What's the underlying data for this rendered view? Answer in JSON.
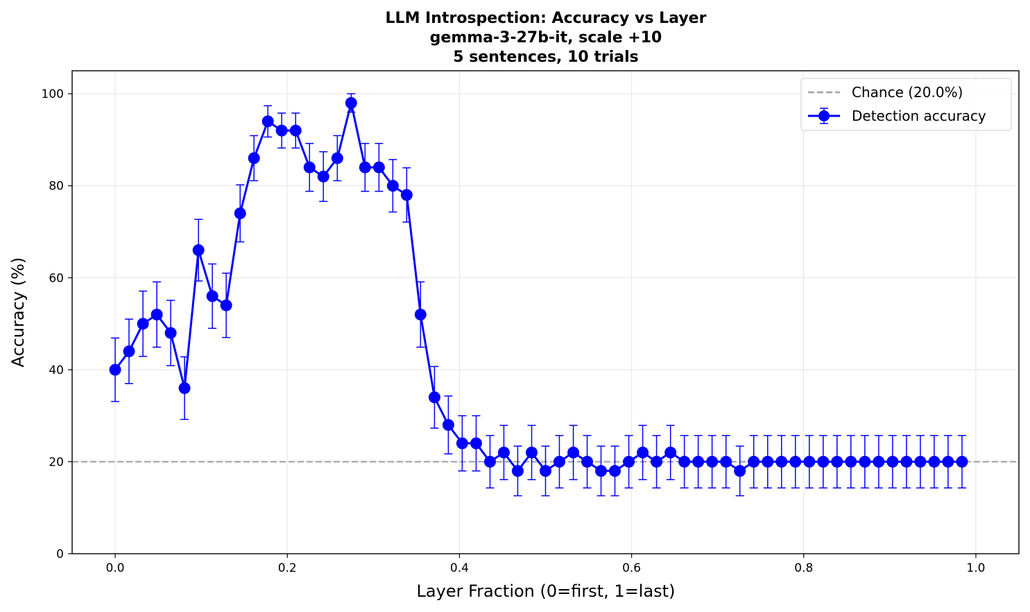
{
  "chart_data": {
    "type": "line",
    "title_lines": [
      "LLM Introspection: Accuracy vs Layer",
      "gemma-3-27b-it, scale +10",
      "5 sentences, 10 trials"
    ],
    "xlabel": "Layer Fraction (0=first, 1=last)",
    "ylabel": "Accuracy (%)",
    "xlim": [
      -0.05,
      1.05
    ],
    "ylim": [
      0,
      105
    ],
    "xticks": [
      0.0,
      0.2,
      0.4,
      0.6,
      0.8,
      1.0
    ],
    "xtick_labels": [
      "0.0",
      "0.2",
      "0.4",
      "0.6",
      "0.8",
      "1.0"
    ],
    "yticks": [
      0,
      20,
      40,
      60,
      80,
      100
    ],
    "ytick_labels": [
      "0",
      "20",
      "40",
      "60",
      "80",
      "100"
    ],
    "grid": true,
    "legend_position": "top-right",
    "series": [
      {
        "name": "Detection accuracy",
        "color": "#0000ff",
        "marker": "circle",
        "x": [
          0.0,
          0.0161,
          0.0323,
          0.0484,
          0.0645,
          0.0806,
          0.0968,
          0.1129,
          0.129,
          0.1452,
          0.1613,
          0.1774,
          0.1935,
          0.2097,
          0.2258,
          0.2419,
          0.2581,
          0.2742,
          0.2903,
          0.3065,
          0.3226,
          0.3387,
          0.3548,
          0.371,
          0.3871,
          0.4032,
          0.4194,
          0.4355,
          0.4516,
          0.4677,
          0.4839,
          0.5,
          0.5161,
          0.5323,
          0.5484,
          0.5645,
          0.5806,
          0.5968,
          0.6129,
          0.629,
          0.6452,
          0.6613,
          0.6774,
          0.6935,
          0.7097,
          0.7258,
          0.7419,
          0.7581,
          0.7742,
          0.7903,
          0.8065,
          0.8226,
          0.8387,
          0.8548,
          0.871,
          0.8871,
          0.9032,
          0.9194,
          0.9355,
          0.9516,
          0.9677,
          0.9839
        ],
        "y": [
          40,
          44,
          50,
          52,
          48,
          36,
          66,
          56,
          54,
          74,
          86,
          94,
          92,
          92,
          84,
          82,
          86,
          98,
          84,
          84,
          80,
          78,
          52,
          34,
          28,
          24,
          24,
          20,
          22,
          18,
          22,
          18,
          20,
          22,
          20,
          18,
          18,
          20,
          22,
          20,
          22,
          20,
          20,
          20,
          20,
          18,
          20,
          20,
          20,
          20,
          20,
          20,
          20,
          20,
          20,
          20,
          20,
          20,
          20,
          20,
          20,
          20
        ],
        "error": [
          6.9,
          7.0,
          7.1,
          7.1,
          7.1,
          6.8,
          6.7,
          7.0,
          7.0,
          6.2,
          4.9,
          3.4,
          3.8,
          3.8,
          5.2,
          5.4,
          4.9,
          2.0,
          5.2,
          5.2,
          5.7,
          5.9,
          7.1,
          6.7,
          6.3,
          6.0,
          6.0,
          5.7,
          5.9,
          5.4,
          5.9,
          5.4,
          5.7,
          5.9,
          5.7,
          5.4,
          5.4,
          5.7,
          5.9,
          5.7,
          5.9,
          5.7,
          5.7,
          5.7,
          5.7,
          5.4,
          5.7,
          5.7,
          5.7,
          5.7,
          5.7,
          5.7,
          5.7,
          5.7,
          5.7,
          5.7,
          5.7,
          5.7,
          5.7,
          5.7,
          5.7,
          5.7
        ]
      }
    ],
    "reference_lines": [
      {
        "name": "Chance (20.0%)",
        "y": 20,
        "color": "#a0a0a0",
        "style": "dashed"
      }
    ]
  }
}
